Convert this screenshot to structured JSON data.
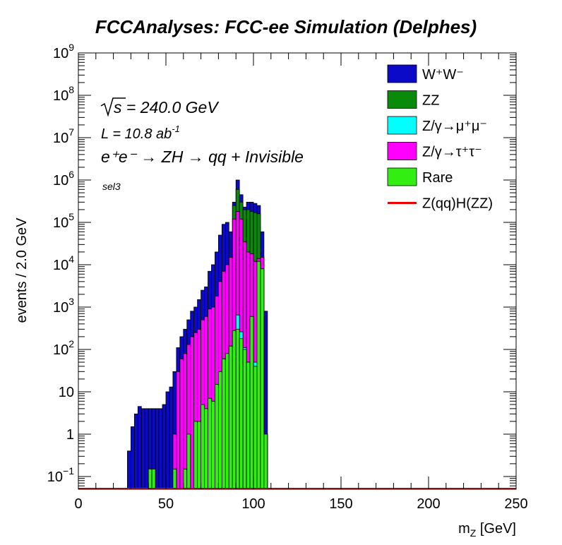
{
  "chart_data": {
    "type": "histogram",
    "title": "FCCAnalyses: FCC-ee Simulation (Delphes)",
    "xlabel_main": "m",
    "xlabel_sub": "Z",
    "xlabel_unit": " [GeV]",
    "ylabel": "events / 2.0 GeV",
    "xlim": [
      0,
      250
    ],
    "ylim": [
      0.05,
      1000000000
    ],
    "log_y": true,
    "stacked": true,
    "x_ticks": [
      "0",
      "50",
      "100",
      "150",
      "200",
      "250"
    ],
    "y_ticks": [
      {
        "v": 0.1,
        "base": "10",
        "exp": "−1"
      },
      {
        "v": 1,
        "base": "1",
        "exp": ""
      },
      {
        "v": 10,
        "base": "10",
        "exp": ""
      },
      {
        "v": 100,
        "base": "10",
        "exp": "2"
      },
      {
        "v": 1000,
        "base": "10",
        "exp": "3"
      },
      {
        "v": 10000,
        "base": "10",
        "exp": "4"
      },
      {
        "v": 100000,
        "base": "10",
        "exp": "5"
      },
      {
        "v": 1000000,
        "base": "10",
        "exp": "6"
      },
      {
        "v": 10000000,
        "base": "10",
        "exp": "7"
      },
      {
        "v": 100000000,
        "base": "10",
        "exp": "8"
      },
      {
        "v": 1000000000,
        "base": "10",
        "exp": "9"
      }
    ],
    "annotations": {
      "sqrt_s": "s = 240.0 GeV",
      "lumi_main": "L = 10.8 ab",
      "lumi_exp": "-1",
      "process": "e⁺e⁻ → ZH → qq + Invisible",
      "selection": "sel3"
    },
    "legend_position": "top-right",
    "legend": [
      {
        "label": "W⁺W⁻",
        "color": "#0a0ac8",
        "kind": "box"
      },
      {
        "label": "ZZ",
        "color": "#0a8a0a",
        "kind": "box"
      },
      {
        "label": "Z/γ→μ⁺μ⁻",
        "color": "#00ffff",
        "kind": "box"
      },
      {
        "label": "Z/γ→τ⁺τ⁻",
        "color": "#ff00ff",
        "kind": "box"
      },
      {
        "label": "Rare",
        "color": "#33ee11",
        "kind": "box"
      },
      {
        "label": "Z(qq)H(ZZ)",
        "color": "#ee0000",
        "kind": "line"
      }
    ],
    "bin_low_edges": [
      28,
      30,
      32,
      34,
      36,
      38,
      40,
      42,
      44,
      46,
      48,
      50,
      52,
      54,
      56,
      58,
      60,
      62,
      64,
      66,
      68,
      70,
      72,
      74,
      76,
      78,
      80,
      82,
      84,
      86,
      88,
      90,
      92,
      94,
      96,
      98,
      100,
      102,
      104,
      106,
      108
    ],
    "bin_width": 2,
    "series_order_bottom_to_top": [
      "Rare",
      "Z/γ→μ⁺μ⁻",
      "Z/γ→τ⁺τ⁻",
      "ZZ",
      "W⁺W⁻"
    ],
    "cumulative_stack": {
      "Rare": [
        0,
        0,
        0,
        0,
        0,
        0,
        0.15,
        0.15,
        0,
        0,
        0,
        0,
        0,
        0.15,
        0,
        0,
        0.15,
        1,
        0,
        2,
        2,
        5,
        4,
        7,
        6,
        15,
        30,
        60,
        80,
        120,
        280,
        300,
        180,
        100,
        50,
        600,
        40,
        12000,
        8000,
        1,
        0
      ],
      "Z/γ→μ⁺μ⁻": [
        0,
        0,
        0,
        0,
        0,
        0,
        0,
        0,
        0,
        0,
        0,
        0,
        0,
        0,
        0,
        0,
        0,
        0,
        0,
        0,
        0,
        1,
        0.5,
        1,
        2,
        10,
        30,
        60,
        80,
        120,
        280,
        650,
        260,
        110,
        50,
        120,
        50,
        1000,
        60,
        1,
        0
      ],
      "Z/γ→τ⁺τ⁻": [
        0,
        0,
        0,
        0,
        0,
        0,
        0,
        0,
        0,
        0,
        0,
        0,
        0,
        1,
        30,
        60,
        80,
        130,
        200,
        250,
        300,
        500,
        600,
        900,
        1000,
        1800,
        4000,
        7000,
        10000,
        15000,
        120000,
        180000,
        120000,
        35000,
        20000,
        18000,
        12000,
        14000,
        15000,
        1,
        0
      ],
      "ZZ": [
        0,
        0,
        0,
        0,
        0,
        0,
        0,
        0,
        0,
        0,
        0,
        0,
        0,
        1,
        30,
        60,
        80,
        130,
        200,
        250,
        300,
        500,
        600,
        900,
        1000,
        1800,
        4000,
        7000,
        10000,
        15000,
        250000,
        600000,
        300000,
        200000,
        200000,
        180000,
        170000,
        160000,
        15000,
        1,
        0
      ],
      "W⁺W⁻": [
        0.4,
        1.5,
        3,
        4.5,
        4,
        4,
        4,
        4,
        4,
        4,
        5,
        10,
        13,
        30,
        110,
        200,
        300,
        500,
        800,
        1000,
        1500,
        2500,
        3000,
        7000,
        10000,
        20000,
        50000,
        90000,
        100000,
        60000,
        300000,
        1000000,
        450000,
        230000,
        300000,
        300000,
        280000,
        250000,
        60000,
        800,
        0.05
      ]
    },
    "signal_series": "Z(qq)H(ZZ)"
  }
}
